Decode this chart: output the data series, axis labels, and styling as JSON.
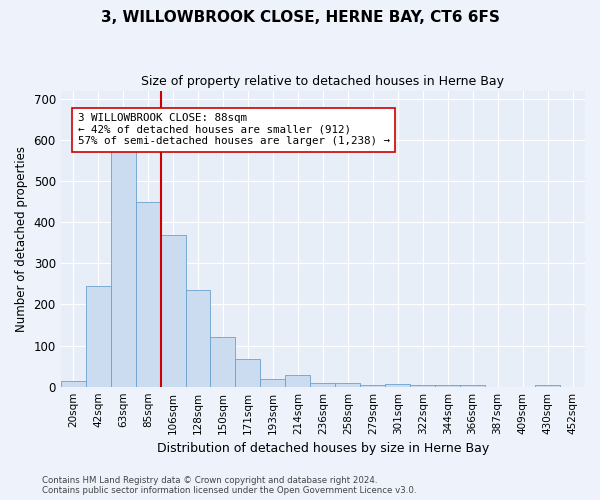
{
  "title": "3, WILLOWBROOK CLOSE, HERNE BAY, CT6 6FS",
  "subtitle": "Size of property relative to detached houses in Herne Bay",
  "xlabel": "Distribution of detached houses by size in Herne Bay",
  "ylabel": "Number of detached properties",
  "bar_color": "#ccdcf0",
  "bar_edge_color": "#6aa0ce",
  "background_color": "#e8eef8",
  "grid_color": "#ffffff",
  "fig_background": "#edf2fb",
  "categories": [
    "20sqm",
    "42sqm",
    "63sqm",
    "85sqm",
    "106sqm",
    "128sqm",
    "150sqm",
    "171sqm",
    "193sqm",
    "214sqm",
    "236sqm",
    "258sqm",
    "279sqm",
    "301sqm",
    "322sqm",
    "344sqm",
    "366sqm",
    "387sqm",
    "409sqm",
    "430sqm",
    "452sqm"
  ],
  "values": [
    15,
    245,
    585,
    450,
    370,
    235,
    120,
    68,
    18,
    28,
    10,
    10,
    5,
    7,
    5,
    5,
    5,
    0,
    0,
    5,
    0
  ],
  "ylim": [
    0,
    720
  ],
  "yticks": [
    0,
    100,
    200,
    300,
    400,
    500,
    600,
    700
  ],
  "red_line_x": 3.5,
  "red_line_color": "#cc0000",
  "annotation_line1": "3 WILLOWBROOK CLOSE: 88sqm",
  "annotation_line2": "← 42% of detached houses are smaller (912)",
  "annotation_line3": "57% of semi-detached houses are larger (1,238) →",
  "footer_line1": "Contains HM Land Registry data © Crown copyright and database right 2024.",
  "footer_line2": "Contains public sector information licensed under the Open Government Licence v3.0.",
  "title_fontsize": 11,
  "subtitle_fontsize": 9,
  "tick_fontsize": 7.5,
  "ylabel_fontsize": 8.5,
  "xlabel_fontsize": 9
}
